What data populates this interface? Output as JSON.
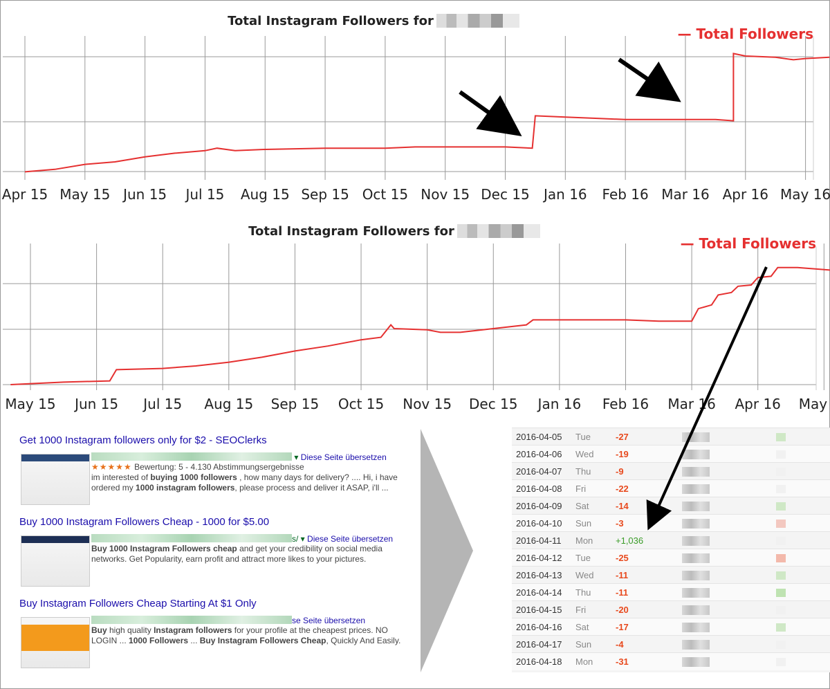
{
  "chart_data": [
    {
      "type": "line",
      "title": "Total Instagram Followers for",
      "legend": "Total Followers",
      "legend_position": "top-right",
      "grid": true,
      "x_ticks": [
        "Apr 15",
        "May 15",
        "Jun 15",
        "Jul 15",
        "Aug 15",
        "Sep 15",
        "Oct 15",
        "Nov 15",
        "Dec 15",
        "Jan 16",
        "Feb 16",
        "Mar 16",
        "Apr 16",
        "May 16"
      ],
      "x_domain": [
        0,
        13.5
      ],
      "ylim": [
        0,
        100
      ],
      "series": [
        {
          "x": [
            0,
            0.5,
            1,
            1.5,
            2,
            2.5,
            3,
            3.2,
            3.5,
            4,
            5,
            6,
            6.5,
            7,
            7.5,
            8,
            8.45,
            8.5,
            9,
            9.5,
            10,
            10.5,
            11,
            11.5,
            11.8,
            11.8,
            12,
            12.5,
            12.8,
            13,
            13.4
          ],
          "y": [
            2,
            4,
            8,
            10,
            14,
            17,
            19,
            21,
            19,
            20,
            21,
            21,
            22,
            22,
            22,
            22,
            21,
            47,
            46,
            45,
            44,
            44,
            44,
            44,
            43,
            97,
            95,
            94,
            92,
            93,
            94
          ]
        }
      ]
    },
    {
      "type": "line",
      "title": "Total Instagram Followers for",
      "legend": "Total Followers",
      "legend_position": "top-right",
      "grid": true,
      "x_ticks": [
        "May 15",
        "Jun 15",
        "Jul 15",
        "Aug 15",
        "Sep 15",
        "Oct 15",
        "Nov 15",
        "Dec 15",
        "Jan 16",
        "Feb 16",
        "Mar 16",
        "Apr 16",
        "May 16"
      ],
      "x_domain": [
        0,
        12.3
      ],
      "ylim": [
        0,
        100
      ],
      "series": [
        {
          "x": [
            -0.3,
            0.5,
            1.2,
            1.3,
            2,
            2.5,
            3,
            3.5,
            4,
            4.5,
            5,
            5.3,
            5.45,
            5.5,
            6,
            6.2,
            6.5,
            7,
            7.5,
            7.6,
            8,
            9,
            9.5,
            9.8,
            10,
            10.1,
            10.3,
            10.4,
            10.6,
            10.7,
            10.9,
            11,
            11.2,
            11.3,
            11.6,
            12.1
          ],
          "y": [
            0,
            2,
            3,
            12,
            13,
            15,
            18,
            22,
            27,
            31,
            36,
            38,
            48,
            45,
            44,
            42,
            42,
            45,
            48,
            52,
            52,
            52,
            51,
            51,
            51,
            61,
            64,
            72,
            74,
            79,
            80,
            86,
            87,
            94,
            94,
            92
          ]
        }
      ]
    }
  ],
  "search_results": [
    {
      "title": "Get 1000 Instagram followers only for $2 - SEOClerks",
      "translate": "Diese Seite übersetzen",
      "rating_stars": "★★★★★",
      "rating_text": "Bewertung: 5 - 4.130 Abstimmungsergebnisse",
      "snippet_html": "im interested of <b>buying 1000 followers</b> , how many days for delivery? .... Hi, i have ordered my <b>1000 instagram followers</b>, please process and deliver it ASAP, i'll ..."
    },
    {
      "title": "Buy 1000 Instagram Followers Cheap - 1000 for $5.00",
      "translate": "Diese Seite übersetzen",
      "snippet_html": "<b>Buy 1000 Instagram Followers cheap</b> and get your credibility on social media networks. Get Popularity, earn profit and attract more likes to your pictures."
    },
    {
      "title": "Buy Instagram Followers Cheap Starting At $1 Only",
      "translate": "se Seite übersetzen",
      "snippet_html": "<b>Buy</b> high quality <b>Instagram followers</b> for your profile at the cheapest prices. NO LOGIN ... <b>1000 Followers</b> ... <b>Buy Instagram Followers Cheap</b>, Quickly And Easily."
    }
  ],
  "stats_rows": [
    {
      "date": "2016-04-05",
      "day": "Tue",
      "change": "-27",
      "sign": "neg"
    },
    {
      "date": "2016-04-06",
      "day": "Wed",
      "change": "-19",
      "sign": "neg"
    },
    {
      "date": "2016-04-07",
      "day": "Thu",
      "change": "-9",
      "sign": "neg"
    },
    {
      "date": "2016-04-08",
      "day": "Fri",
      "change": "-22",
      "sign": "neg"
    },
    {
      "date": "2016-04-09",
      "day": "Sat",
      "change": "-14",
      "sign": "neg"
    },
    {
      "date": "2016-04-10",
      "day": "Sun",
      "change": "-3",
      "sign": "neg"
    },
    {
      "date": "2016-04-11",
      "day": "Mon",
      "change": "+1,036",
      "sign": "pos"
    },
    {
      "date": "2016-04-12",
      "day": "Tue",
      "change": "-25",
      "sign": "neg"
    },
    {
      "date": "2016-04-13",
      "day": "Wed",
      "change": "-11",
      "sign": "neg"
    },
    {
      "date": "2016-04-14",
      "day": "Thu",
      "change": "-11",
      "sign": "neg"
    },
    {
      "date": "2016-04-15",
      "day": "Fri",
      "change": "-20",
      "sign": "neg"
    },
    {
      "date": "2016-04-16",
      "day": "Sat",
      "change": "-17",
      "sign": "neg"
    },
    {
      "date": "2016-04-17",
      "day": "Sun",
      "change": "-4",
      "sign": "neg"
    },
    {
      "date": "2016-04-18",
      "day": "Mon",
      "change": "-31",
      "sign": "neg"
    }
  ],
  "colors": {
    "line": "#e53030",
    "legend": "#e53030",
    "grid": "#999999",
    "negative": "#e8491d",
    "positive": "#3a9c28",
    "link": "#1a0dab"
  }
}
